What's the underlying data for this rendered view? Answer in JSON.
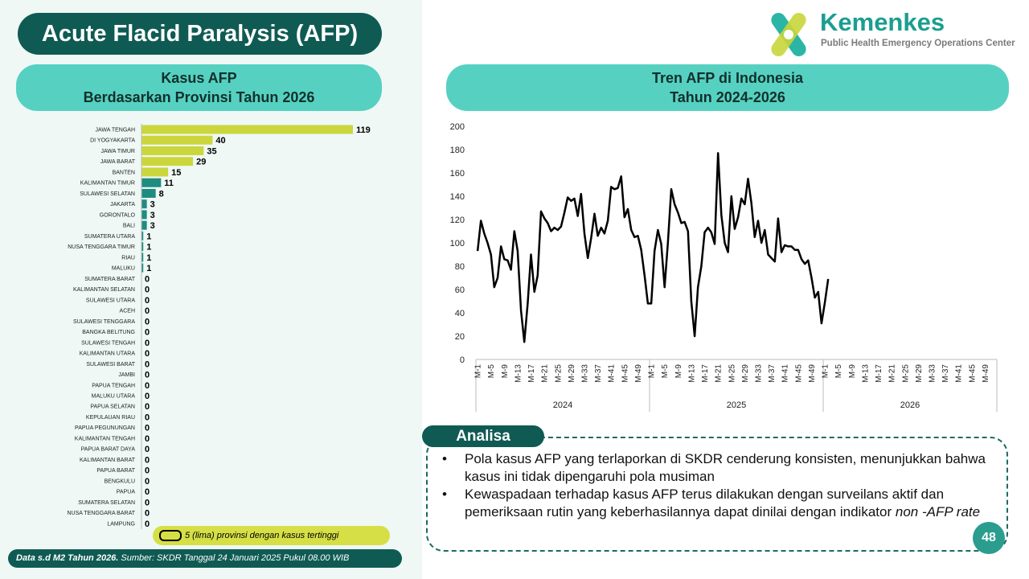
{
  "header": {
    "title": "Acute Flacid Paralysis (AFP)",
    "logo_name": "Kemenkes",
    "logo_subtitle": "Public Health Emergency Operations Center"
  },
  "chart_data": [
    {
      "type": "hbar",
      "title": "Kasus AFP",
      "subtitle": "Berdasarkan Provinsi Tahun 2026",
      "categories": [
        "JAWA TENGAH",
        "DI YOGYAKARTA",
        "JAWA TIMUR",
        "JAWA BARAT",
        "BANTEN",
        "KALIMANTAN TIMUR",
        "SULAWESI SELATAN",
        "JAKARTA",
        "GORONTALO",
        "BALI",
        "SUMATERA UTARA",
        "NUSA TENGGARA TIMUR",
        "RIAU",
        "MALUKU",
        "SUMATERA BARAT",
        "KALIMANTAN SELATAN",
        "SULAWESI UTARA",
        "ACEH",
        "SULAWESI TENGGARA",
        "BANGKA BELITUNG",
        "SULAWESI TENGAH",
        "KALIMANTAN UTARA",
        "SULAWESI BARAT",
        "JAMBI",
        "PAPUA TENGAH",
        "MALUKU UTARA",
        "PAPUA SELATAN",
        "KEPULAUAN RIAU",
        "PAPUA PEGUNUNGAN",
        "KALIMANTAN TENGAH",
        "PAPUA BARAT DAYA",
        "KALIMANTAN BARAT",
        "PAPUA BARAT",
        "BENGKULU",
        "PAPUA",
        "SUMATERA SELATAN",
        "NUSA TENGGARA BARAT",
        "LAMPUNG"
      ],
      "values": [
        119,
        40,
        35,
        29,
        15,
        11,
        8,
        3,
        3,
        3,
        1,
        1,
        1,
        1,
        0,
        0,
        0,
        0,
        0,
        0,
        0,
        0,
        0,
        0,
        0,
        0,
        0,
        0,
        0,
        0,
        0,
        0,
        0,
        0,
        0,
        0,
        0,
        0
      ],
      "colors": [
        "#cbd63c",
        "#cbd63c",
        "#cbd63c",
        "#cbd63c",
        "#cbd63c",
        "#1e8c80",
        "#1e8c80",
        "#1e8c80",
        "#1e8c80",
        "#1e8c80",
        "#1e8c80",
        "#1e8c80",
        "#1e8c80",
        "#1e8c80",
        "#1e8c80",
        "#1e8c80",
        "#1e8c80",
        "#1e8c80",
        "#1e8c80",
        "#1e8c80",
        "#1e8c80",
        "#1e8c80",
        "#1e8c80",
        "#1e8c80",
        "#1e8c80",
        "#1e8c80",
        "#1e8c80",
        "#1e8c80",
        "#1e8c80",
        "#1e8c80",
        "#1e8c80",
        "#1e8c80",
        "#1e8c80",
        "#1e8c80",
        "#1e8c80",
        "#1e8c80",
        "#1e8c80",
        "#1e8c80"
      ],
      "note": "5 (lima) provinsi dengan kasus tertinggi"
    },
    {
      "type": "line",
      "title": "Tren AFP di Indonesia",
      "subtitle": "Tahun 2024-2026",
      "color": "#000000",
      "ylim": [
        0,
        200
      ],
      "yticks": [
        0,
        20,
        40,
        60,
        80,
        100,
        120,
        140,
        160,
        180,
        200
      ],
      "groups": [
        {
          "label": "2024",
          "categories": [
            "M-1",
            null,
            null,
            null,
            "M-5",
            null,
            null,
            null,
            "M-9",
            null,
            null,
            null,
            "M-13",
            null,
            null,
            null,
            "M-17",
            null,
            null,
            null,
            "M-21",
            null,
            null,
            null,
            "M-25",
            null,
            null,
            null,
            "M-29",
            null,
            null,
            null,
            "M-33",
            null,
            null,
            null,
            "M-37",
            null,
            null,
            null,
            "M-41",
            null,
            null,
            null,
            "M-45",
            null,
            null,
            null,
            "M-49",
            null,
            null,
            null
          ],
          "values": [
            93,
            119,
            108,
            100,
            90,
            62,
            70,
            97,
            86,
            85,
            77,
            110,
            93,
            42,
            15,
            48,
            90,
            58,
            72,
            127,
            121,
            117,
            110,
            113,
            111,
            114,
            126,
            139,
            136,
            138,
            123,
            142,
            108,
            87,
            104,
            125,
            106,
            113,
            108,
            119,
            148,
            146,
            147,
            157,
            122,
            129,
            111,
            105,
            106,
            94,
            72,
            48
          ]
        },
        {
          "label": "2025",
          "categories": [
            "M-1",
            null,
            null,
            null,
            "M-5",
            null,
            null,
            null,
            "M-9",
            null,
            null,
            null,
            "M-13",
            null,
            null,
            null,
            "M-17",
            null,
            null,
            null,
            "M-21",
            null,
            null,
            null,
            "M-25",
            null,
            null,
            null,
            "M-29",
            null,
            null,
            null,
            "M-33",
            null,
            null,
            null,
            "M-37",
            null,
            null,
            null,
            "M-41",
            null,
            null,
            null,
            "M-45",
            null,
            null,
            null,
            "M-49",
            null,
            null,
            null
          ],
          "values": [
            48,
            93,
            111,
            99,
            62,
            100,
            146,
            133,
            126,
            117,
            118,
            110,
            50,
            20,
            62,
            80,
            109,
            113,
            109,
            99,
            177,
            124,
            100,
            92,
            140,
            112,
            122,
            138,
            133,
            155,
            134,
            105,
            119,
            100,
            111,
            90,
            87,
            84,
            121,
            92,
            98,
            97,
            97,
            94,
            94,
            86,
            82,
            85,
            70,
            53,
            58,
            31
          ]
        },
        {
          "label": "2026",
          "categories": [
            "M-1",
            null,
            null,
            null,
            "M-5",
            null,
            null,
            null,
            "M-9",
            null,
            null,
            null,
            "M-13",
            null,
            null,
            null,
            "M-17",
            null,
            null,
            null,
            "M-21",
            null,
            null,
            null,
            "M-25",
            null,
            null,
            null,
            "M-29",
            null,
            null,
            null,
            "M-33",
            null,
            null,
            null,
            "M-37",
            null,
            null,
            null,
            "M-41",
            null,
            null,
            null,
            "M-45",
            null,
            null,
            null,
            "M-49",
            null,
            null,
            null
          ],
          "values": [
            49,
            69,
            null,
            null,
            null,
            null,
            null,
            null,
            null,
            null,
            null,
            null,
            null,
            null,
            null,
            null,
            null,
            null,
            null,
            null,
            null,
            null,
            null,
            null,
            null,
            null,
            null,
            null,
            null,
            null,
            null,
            null,
            null,
            null,
            null,
            null,
            null,
            null,
            null,
            null,
            null,
            null,
            null,
            null,
            null,
            null,
            null,
            null,
            null,
            null,
            null,
            null
          ]
        }
      ]
    }
  ],
  "analysis": {
    "label": "Analisa",
    "bullets": [
      {
        "text": "Pola kasus AFP yang terlaporkan di SKDR cenderung konsisten, menunjukkan bahwa kasus ini tidak dipengaruhi pola musiman"
      },
      {
        "text": "Kewaspadaan terhadap kasus AFP terus dilakukan dengan surveilans aktif dan pemeriksaan rutin yang keberhasilannya dapat dinilai dengan indikator",
        "emphasis": "non -AFP rate"
      }
    ]
  },
  "footer": {
    "data_note": "Data s.d M2 Tahun 2026.",
    "source": "Sumber: SKDR Tanggal 24 Januari 2025 Pukul 08.00 WIB",
    "page": "48"
  }
}
